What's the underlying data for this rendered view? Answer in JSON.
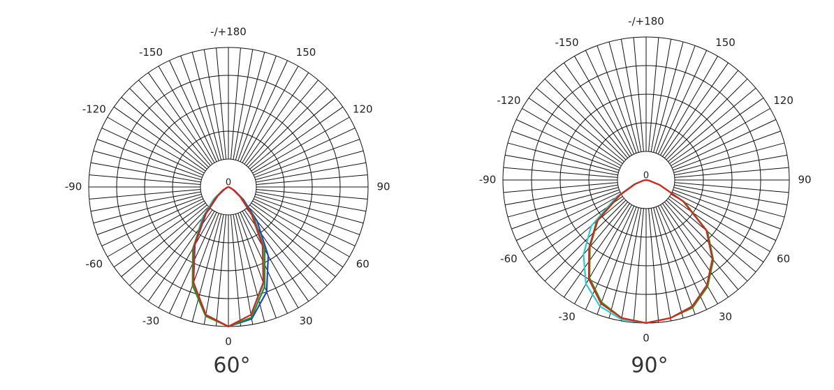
{
  "chart_data": [
    {
      "type": "polar",
      "caption": "60°",
      "center_label": "0",
      "angle_ticks": [
        {
          "value": 180,
          "label": "-/+180"
        },
        150,
        120,
        90,
        60,
        30,
        0,
        -30,
        -60,
        -90,
        -120,
        -150
      ],
      "rlim": [
        0,
        100
      ],
      "rgrid": [
        20,
        40,
        60,
        80,
        100
      ],
      "spoke_step": 5,
      "theta": [
        -90,
        -80,
        -70,
        -60,
        -50,
        -40,
        -30,
        -20,
        -10,
        0,
        10,
        20,
        30,
        40,
        50,
        60,
        70,
        80,
        90
      ],
      "series": [
        {
          "color": "#20d0d0",
          "values": [
            0,
            0,
            1,
            5,
            14,
            29,
            50,
            74,
            93,
            100,
            93,
            74,
            50,
            28,
            12,
            4,
            1,
            0,
            0
          ]
        },
        {
          "color": "#1f3fe0",
          "values": [
            0,
            0,
            1,
            3,
            10,
            25,
            48,
            73,
            93,
            100,
            96,
            80,
            57,
            32,
            14,
            5,
            1,
            0,
            0
          ]
        },
        {
          "color": "#1a9a1a",
          "values": [
            0,
            0,
            1,
            4,
            12,
            27,
            51,
            75,
            94,
            100,
            95,
            76,
            52,
            28,
            12,
            4,
            1,
            0,
            0
          ]
        },
        {
          "color": "#e0201a",
          "values": [
            0,
            0,
            1,
            4,
            11,
            26,
            49,
            73,
            93,
            100,
            93,
            73,
            49,
            26,
            11,
            4,
            1,
            0,
            0
          ]
        }
      ]
    },
    {
      "type": "polar",
      "caption": "90°",
      "center_label": "0",
      "angle_ticks": [
        {
          "value": 180,
          "label": "-/+180"
        },
        150,
        120,
        90,
        60,
        30,
        0,
        -30,
        -60,
        -90,
        -120,
        -150
      ],
      "rlim": [
        0,
        100
      ],
      "rgrid": [
        20,
        40,
        60,
        80,
        100
      ],
      "spoke_step": 5,
      "theta": [
        -90,
        -80,
        -70,
        -60,
        -50,
        -40,
        -30,
        -20,
        -10,
        0,
        10,
        20,
        30,
        40,
        50,
        60,
        70,
        80,
        90
      ],
      "series": [
        {
          "color": "#20d0d0",
          "values": [
            0,
            2,
            9,
            24,
            50,
            68,
            84,
            94,
            99,
            100,
            98,
            94,
            85,
            72,
            55,
            30,
            10,
            2,
            0
          ]
        },
        {
          "color": "#1a9a1a",
          "values": [
            0,
            2,
            8,
            21,
            44,
            61,
            79,
            91,
            98,
            100,
            98,
            95,
            86,
            73,
            56,
            31,
            10,
            2,
            0
          ]
        },
        {
          "color": "#e0201a",
          "values": [
            0,
            2,
            8,
            22,
            45,
            62,
            80,
            92,
            98,
            100,
            98,
            94,
            85,
            72,
            55,
            30,
            10,
            2,
            0
          ]
        }
      ]
    }
  ]
}
